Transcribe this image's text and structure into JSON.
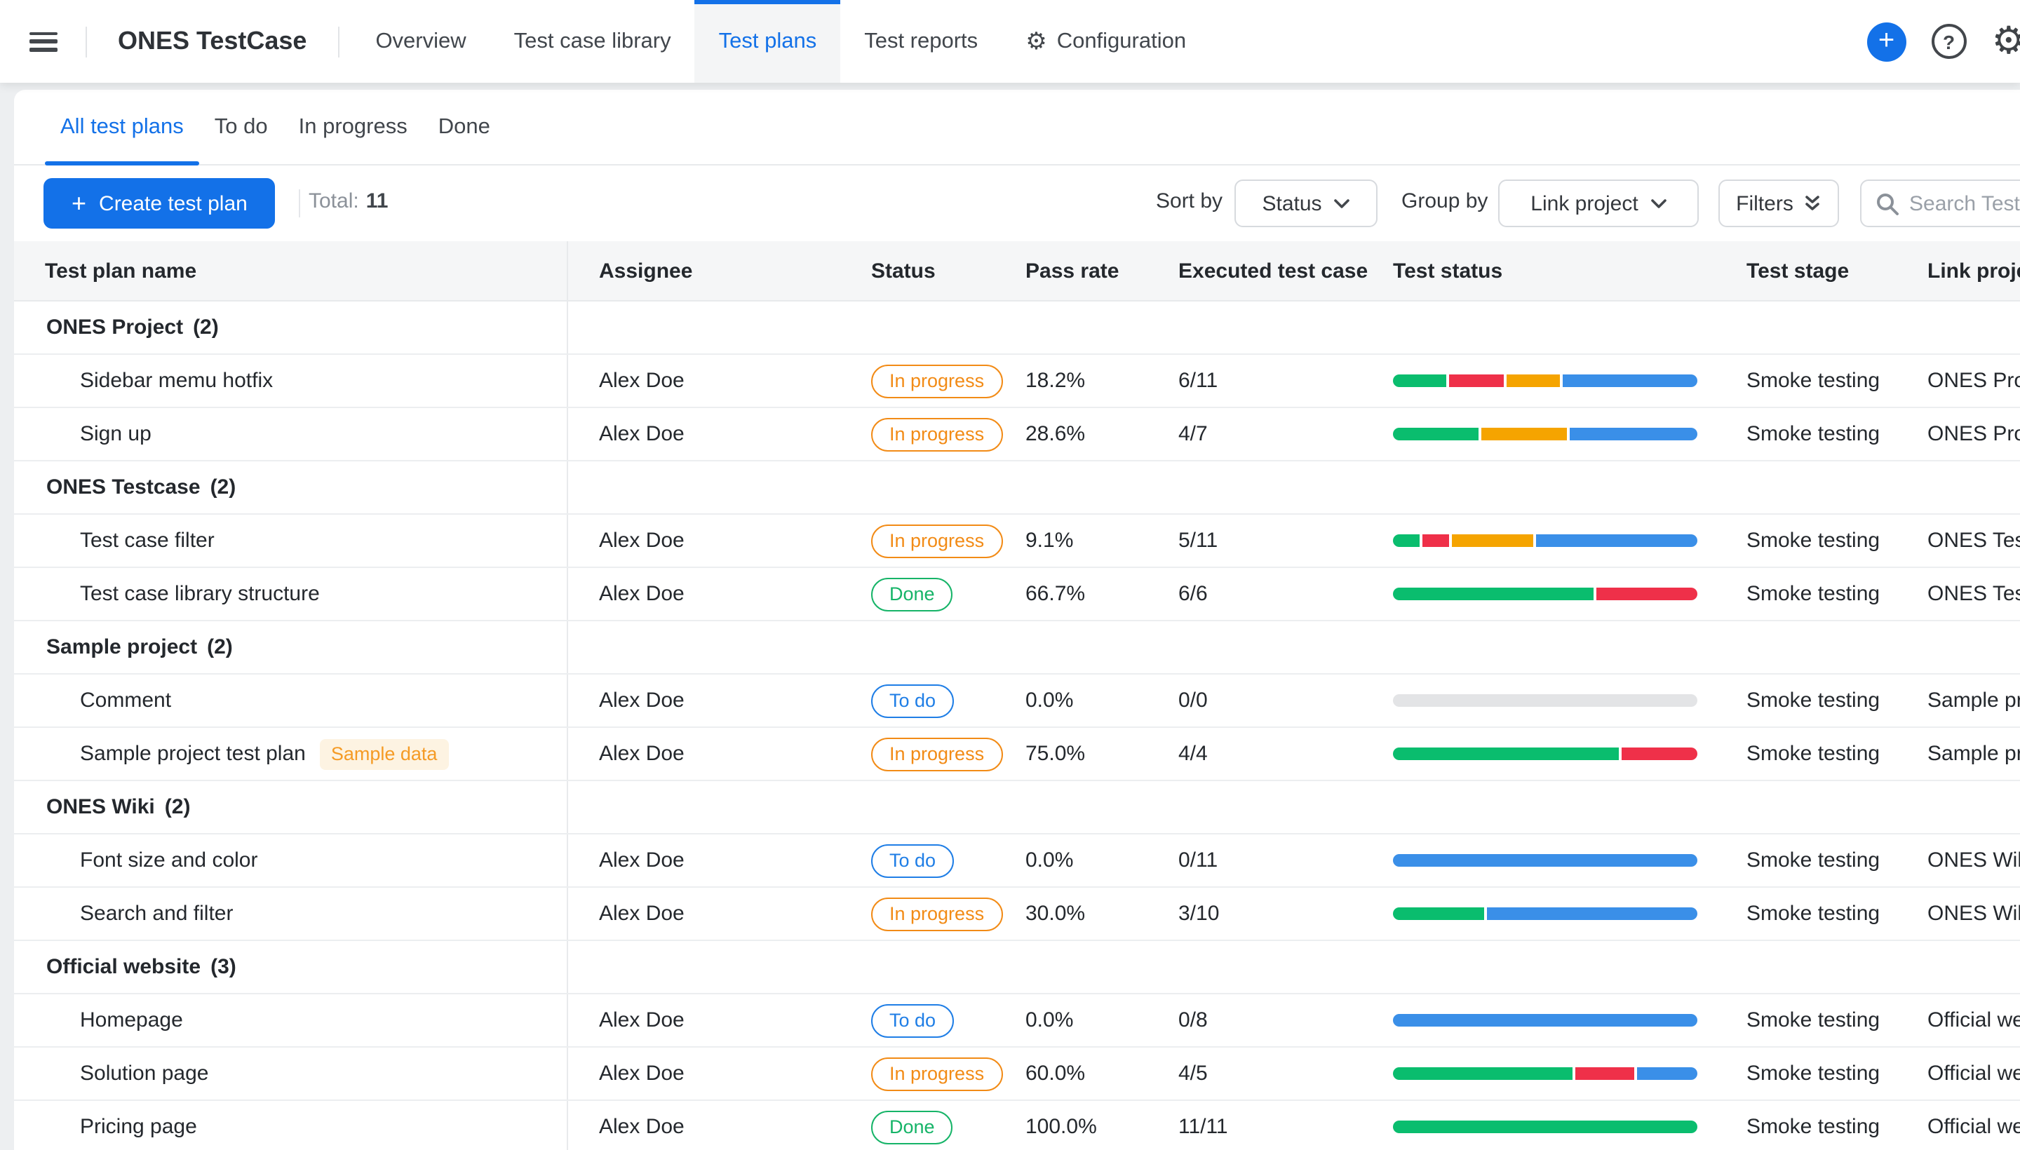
{
  "topnav": {
    "title": "ONES TestCase",
    "items": [
      {
        "label": "Overview",
        "active": false
      },
      {
        "label": "Test case library",
        "active": false
      },
      {
        "label": "Test plans",
        "active": true
      },
      {
        "label": "Test reports",
        "active": false
      },
      {
        "label": "Configuration",
        "active": false,
        "icon": "gear-icon"
      }
    ],
    "action_icons": [
      "plus-circle-icon",
      "question-circle-icon",
      "gear-icon"
    ]
  },
  "view_tabs": [
    {
      "label": "All test plans",
      "active": true
    },
    {
      "label": "To do",
      "active": false
    },
    {
      "label": "In progress",
      "active": false
    },
    {
      "label": "Done",
      "active": false
    }
  ],
  "toolbar": {
    "create_button_label": "Create test plan",
    "total_label": "Total:",
    "total_value": "11",
    "sort_by_label": "Sort by",
    "sort_by_value": "Status",
    "group_by_label": "Group by",
    "group_by_value": "Link project",
    "filters_label": "Filters",
    "search_placeholder": "Search Test plan",
    "search_icon": "magnifier-icon"
  },
  "table": {
    "columns": [
      "Test plan name",
      "Assignee",
      "Status",
      "Pass rate",
      "Executed test case",
      "Test status",
      "Test stage",
      "Link project"
    ],
    "status_colors": {
      "To do": "#1f7ee6",
      "In progress": "#f28b16",
      "Done": "#16b468"
    },
    "segment_colors": {
      "green": "#0abd6e",
      "red": "#ef3049",
      "orange": "#f5a400",
      "blue": "#3a8fe8",
      "gray": "#e3e4e6"
    },
    "groups": [
      {
        "name": "ONES Project",
        "count_label": "(2)",
        "rows": [
          {
            "name": "Sidebar memu hotfix",
            "assignee": "Alex Doe",
            "status": "In progress",
            "pass_rate": "18.2%",
            "executed": "6/11",
            "segments": [
              {
                "color": "green",
                "pct": 18.2
              },
              {
                "color": "red",
                "pct": 18.2
              },
              {
                "color": "orange",
                "pct": 18.2
              },
              {
                "color": "blue",
                "pct": 45.4
              }
            ],
            "stage": "Smoke testing",
            "link_project": "ONES Project"
          },
          {
            "name": "Sign up",
            "assignee": "Alex Doe",
            "status": "In progress",
            "pass_rate": "28.6%",
            "executed": "4/7",
            "segments": [
              {
                "color": "green",
                "pct": 28.6
              },
              {
                "color": "orange",
                "pct": 28.6
              },
              {
                "color": "blue",
                "pct": 42.8
              }
            ],
            "stage": "Smoke testing",
            "link_project": "ONES Project"
          }
        ]
      },
      {
        "name": "ONES Testcase",
        "count_label": "(2)",
        "rows": [
          {
            "name": "Test case filter",
            "assignee": "Alex Doe",
            "status": "In progress",
            "pass_rate": "9.1%",
            "executed": "5/11",
            "segments": [
              {
                "color": "green",
                "pct": 9.1
              },
              {
                "color": "red",
                "pct": 9.1
              },
              {
                "color": "orange",
                "pct": 27.3
              },
              {
                "color": "blue",
                "pct": 54.5
              }
            ],
            "stage": "Smoke testing",
            "link_project": "ONES Testcase"
          },
          {
            "name": "Test case library structure",
            "assignee": "Alex Doe",
            "status": "Done",
            "pass_rate": "66.7%",
            "executed": "6/6",
            "segments": [
              {
                "color": "green",
                "pct": 66.7
              },
              {
                "color": "red",
                "pct": 33.3
              }
            ],
            "stage": "Smoke testing",
            "link_project": "ONES Testcase"
          }
        ]
      },
      {
        "name": "Sample project",
        "count_label": "(2)",
        "rows": [
          {
            "name": "Comment",
            "assignee": "Alex Doe",
            "status": "To do",
            "pass_rate": "0.0%",
            "executed": "0/0",
            "segments": [
              {
                "color": "gray",
                "pct": 100
              }
            ],
            "stage": "Smoke testing",
            "link_project": "Sample project"
          },
          {
            "name": "Sample project test plan",
            "badge": "Sample data",
            "assignee": "Alex Doe",
            "status": "In progress",
            "pass_rate": "75.0%",
            "executed": "4/4",
            "segments": [
              {
                "color": "green",
                "pct": 75
              },
              {
                "color": "red",
                "pct": 25
              }
            ],
            "stage": "Smoke testing",
            "link_project": "Sample project"
          }
        ]
      },
      {
        "name": "ONES Wiki",
        "count_label": "(2)",
        "rows": [
          {
            "name": "Font size and color",
            "assignee": "Alex Doe",
            "status": "To do",
            "pass_rate": "0.0%",
            "executed": "0/11",
            "segments": [
              {
                "color": "blue",
                "pct": 100
              }
            ],
            "stage": "Smoke testing",
            "link_project": "ONES Wiki"
          },
          {
            "name": "Search and filter",
            "assignee": "Alex Doe",
            "status": "In progress",
            "pass_rate": "30.0%",
            "executed": "3/10",
            "segments": [
              {
                "color": "green",
                "pct": 30
              },
              {
                "color": "blue",
                "pct": 70
              }
            ],
            "stage": "Smoke testing",
            "link_project": "ONES Wiki"
          }
        ]
      },
      {
        "name": "Official website",
        "count_label": "(3)",
        "rows": [
          {
            "name": "Homepage",
            "assignee": "Alex Doe",
            "status": "To do",
            "pass_rate": "0.0%",
            "executed": "0/8",
            "segments": [
              {
                "color": "blue",
                "pct": 100
              }
            ],
            "stage": "Smoke testing",
            "link_project": "Official website"
          },
          {
            "name": "Solution page",
            "assignee": "Alex Doe",
            "status": "In progress",
            "pass_rate": "60.0%",
            "executed": "4/5",
            "segments": [
              {
                "color": "green",
                "pct": 60
              },
              {
                "color": "red",
                "pct": 20
              },
              {
                "color": "blue",
                "pct": 20
              }
            ],
            "stage": "Smoke testing",
            "link_project": "Official website"
          },
          {
            "name": "Pricing page",
            "assignee": "Alex Doe",
            "status": "Done",
            "pass_rate": "100.0%",
            "executed": "11/11",
            "segments": [
              {
                "color": "green",
                "pct": 100
              }
            ],
            "stage": "Smoke testing",
            "link_project": "Official website"
          }
        ]
      }
    ]
  },
  "colors": {
    "accent": "#1371e8",
    "header_bg": "#f5f6f7",
    "page_bg": "#edeff1",
    "border": "#e8eaec"
  }
}
